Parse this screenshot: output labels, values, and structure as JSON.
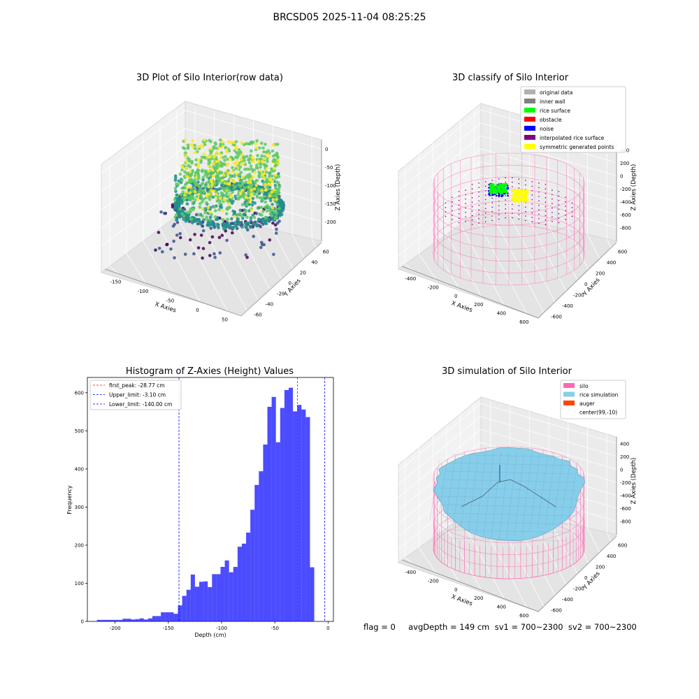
{
  "figure": {
    "suptitle": "BRCSD05 2025-11-04 08:25:25",
    "footer": "flag = 0     avgDepth = 149 cm  sv1 = 700~2300  sv2 = 700~2300"
  },
  "chart_data": [
    {
      "type": "scatter",
      "title": "3D Plot of Silo Interior(row data)",
      "xlabel": "X Axies",
      "ylabel": "Y Axies",
      "zlabel": "Z Axies (Depth)",
      "x_ticks": [
        "-150",
        "-100",
        "-50",
        "0",
        "50"
      ],
      "y_ticks": [
        "-60",
        "-40",
        "-20",
        "0",
        "20",
        "40",
        "60"
      ],
      "z_ticks": [
        "0",
        "-50",
        "-100",
        "-150",
        "-200"
      ],
      "xlim": [
        -160,
        80
      ],
      "ylim": [
        -60,
        65
      ],
      "zlim": [
        -225,
        5
      ],
      "colormap": [
        "#440154",
        "#3b528b",
        "#21918c",
        "#5ec962",
        "#fde725"
      ],
      "grid": true
    },
    {
      "type": "scatter",
      "title": "3D classify of Silo Interior",
      "xlabel": "X Axies",
      "ylabel": "Y Axies",
      "zlabel": "Z Axies (Depth)",
      "x_ticks": [
        "-400",
        "-200",
        "0",
        "200",
        "400",
        "600"
      ],
      "y_ticks": [
        "-600",
        "-400",
        "-200",
        "0",
        "200",
        "400",
        "600"
      ],
      "z_ticks": [
        "400",
        "200",
        "0",
        "-200",
        "-400",
        "-600",
        "-800"
      ],
      "legend_position": "top-right",
      "legend": [
        {
          "label": "original data",
          "color": "#b0b0b0"
        },
        {
          "label": "inner wall",
          "color": "#808080"
        },
        {
          "label": "rice surface",
          "color": "#00ff00"
        },
        {
          "label": "obstacle",
          "color": "#ff0000"
        },
        {
          "label": "noise",
          "color": "#0000ff"
        },
        {
          "label": "interpolated rice surface",
          "color": "#800080"
        },
        {
          "label": "symmetric generated points",
          "color": "#ffff00"
        }
      ],
      "grid": true
    },
    {
      "type": "bar",
      "title": "Histogram of Z-Axies (Height) Values",
      "xlabel": "Depth (cm)",
      "ylabel": "Frequency",
      "xlim": [
        -226,
        5
      ],
      "ylim": [
        0,
        640
      ],
      "x_ticks": [
        -200,
        -150,
        -100,
        -50,
        0
      ],
      "y_ticks": [
        0,
        100,
        200,
        300,
        400,
        500,
        600
      ],
      "bin_start": -217,
      "bin_width": 4,
      "values": [
        4,
        4,
        4,
        4,
        4,
        4,
        7,
        7,
        5,
        6,
        8,
        5,
        8,
        14,
        14,
        24,
        24,
        24,
        20,
        42,
        67,
        83,
        123,
        91,
        104,
        105,
        90,
        124,
        124,
        143,
        160,
        129,
        143,
        196,
        204,
        233,
        293,
        358,
        394,
        464,
        563,
        589,
        470,
        560,
        607,
        613,
        551,
        568,
        556,
        536,
        142
      ],
      "bar_color": "#0000ff",
      "bar_alpha": 0.7,
      "lines": [
        {
          "label": "first_peak: -28.77 cm",
          "x": -28.77,
          "color": "#ff0000"
        },
        {
          "label": "Upper_limit: -3.10 cm",
          "x": -3.1,
          "color": "#0000ff"
        },
        {
          "label": "Lower_limit: -140.00 cm",
          "x": -140.0,
          "color": "#0000ff"
        }
      ],
      "legend_position": "top-left",
      "grid": false
    },
    {
      "type": "area",
      "title": "3D simulation of Silo Interior",
      "xlabel": "X Axies",
      "ylabel": "Y Axies",
      "zlabel": "Z Axies (Depth)",
      "x_ticks": [
        "-400",
        "-200",
        "0",
        "200",
        "400",
        "600"
      ],
      "y_ticks": [
        "-600",
        "-400",
        "-200",
        "0",
        "200",
        "400",
        "600"
      ],
      "z_ticks": [
        "400",
        "200",
        "0",
        "-200",
        "-400",
        "-600",
        "-800"
      ],
      "legend_position": "top-right",
      "legend": [
        {
          "label": "silo",
          "color": "#ff69b4"
        },
        {
          "label": "rice simulation",
          "color": "#87ceeb"
        },
        {
          "label": "auger",
          "color": "#ff4500"
        },
        {
          "label": "center(99,-10)",
          "color": "#ffffff"
        }
      ],
      "grid": true
    }
  ]
}
